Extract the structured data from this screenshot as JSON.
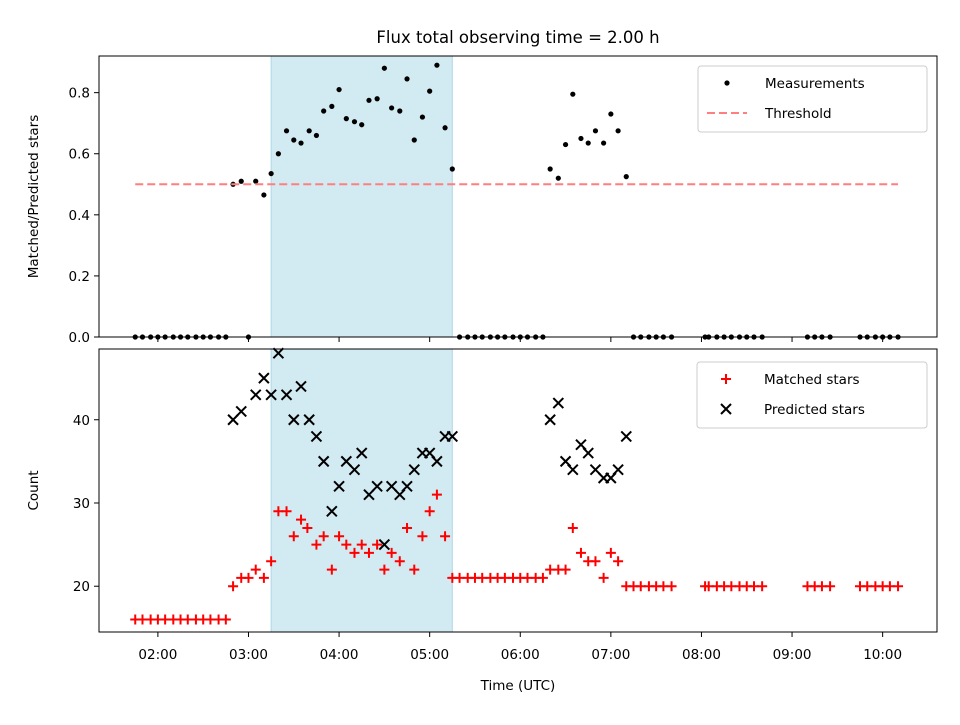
{
  "title": "Flux total observing time = 2.00 h",
  "x_axis": {
    "label": "Time (UTC)",
    "ticks": [
      "02:00",
      "03:00",
      "04:00",
      "05:00",
      "06:00",
      "07:00",
      "08:00",
      "09:00",
      "10:00"
    ],
    "tick_hours": [
      2,
      3,
      4,
      5,
      6,
      7,
      8,
      9,
      10
    ],
    "range_hours": [
      1.35,
      10.6
    ]
  },
  "highlight": {
    "start_hours": 3.25,
    "end_hours": 5.25,
    "color": "#add8e6"
  },
  "colors": {
    "measurements": "#000000",
    "threshold": "#ff7f7f",
    "matched": "#ff0000",
    "predicted": "#000000"
  },
  "chart_data": [
    {
      "type": "scatter",
      "ylabel": "Matched/Predicted stars",
      "ylim": [
        0,
        0.92
      ],
      "yticks": [
        "0.0",
        "0.2",
        "0.4",
        "0.6",
        "0.8"
      ],
      "legend": "top-right",
      "grid": false,
      "series": [
        {
          "name": "Measurements",
          "marker": "dot",
          "points": [
            [
              1.75,
              0
            ],
            [
              1.83,
              0
            ],
            [
              1.92,
              0
            ],
            [
              2.0,
              0
            ],
            [
              2.08,
              0
            ],
            [
              2.17,
              0
            ],
            [
              2.25,
              0
            ],
            [
              2.33,
              0
            ],
            [
              2.42,
              0
            ],
            [
              2.5,
              0
            ],
            [
              2.58,
              0
            ],
            [
              2.67,
              0
            ],
            [
              2.75,
              0
            ],
            [
              2.83,
              0.5
            ],
            [
              2.92,
              0.51
            ],
            [
              3.0,
              0
            ],
            [
              3.08,
              0.51
            ],
            [
              3.17,
              0.465
            ],
            [
              3.25,
              0.535
            ],
            [
              3.33,
              0.6
            ],
            [
              3.42,
              0.675
            ],
            [
              3.5,
              0.645
            ],
            [
              3.58,
              0.635
            ],
            [
              3.67,
              0.675
            ],
            [
              3.75,
              0.66
            ],
            [
              3.83,
              0.74
            ],
            [
              3.92,
              0.755
            ],
            [
              4.0,
              0.81
            ],
            [
              4.08,
              0.715
            ],
            [
              4.17,
              0.705
            ],
            [
              4.25,
              0.695
            ],
            [
              4.33,
              0.775
            ],
            [
              4.42,
              0.78
            ],
            [
              4.5,
              0.88
            ],
            [
              4.58,
              0.75
            ],
            [
              4.67,
              0.74
            ],
            [
              4.75,
              0.845
            ],
            [
              4.83,
              0.645
            ],
            [
              4.92,
              0.72
            ],
            [
              5.0,
              0.805
            ],
            [
              5.08,
              0.89
            ],
            [
              5.17,
              0.685
            ],
            [
              5.25,
              0.55
            ],
            [
              5.33,
              0
            ],
            [
              5.42,
              0
            ],
            [
              5.5,
              0
            ],
            [
              5.58,
              0
            ],
            [
              5.67,
              0
            ],
            [
              5.75,
              0
            ],
            [
              5.83,
              0
            ],
            [
              5.92,
              0
            ],
            [
              6.0,
              0
            ],
            [
              6.08,
              0
            ],
            [
              6.17,
              0
            ],
            [
              6.25,
              0
            ],
            [
              6.33,
              0.55
            ],
            [
              6.42,
              0.52
            ],
            [
              6.5,
              0.63
            ],
            [
              6.58,
              0.795
            ],
            [
              6.67,
              0.65
            ],
            [
              6.75,
              0.635
            ],
            [
              6.83,
              0.675
            ],
            [
              6.92,
              0.635
            ],
            [
              7.0,
              0.73
            ],
            [
              7.08,
              0.675
            ],
            [
              7.17,
              0.525
            ],
            [
              7.25,
              0
            ],
            [
              7.33,
              0
            ],
            [
              7.42,
              0
            ],
            [
              7.5,
              0
            ],
            [
              7.58,
              0
            ],
            [
              7.67,
              0
            ],
            [
              8.04,
              0
            ],
            [
              8.08,
              0
            ],
            [
              8.17,
              0
            ],
            [
              8.25,
              0
            ],
            [
              8.33,
              0
            ],
            [
              8.42,
              0
            ],
            [
              8.5,
              0
            ],
            [
              8.58,
              0
            ],
            [
              8.67,
              0
            ],
            [
              9.17,
              0
            ],
            [
              9.25,
              0
            ],
            [
              9.33,
              0
            ],
            [
              9.42,
              0
            ],
            [
              9.75,
              0
            ],
            [
              9.83,
              0
            ],
            [
              9.92,
              0
            ],
            [
              10.0,
              0
            ],
            [
              10.08,
              0
            ],
            [
              10.17,
              0
            ]
          ]
        },
        {
          "name": "Threshold",
          "style": "dashed",
          "points": [
            [
              1.75,
              0.5
            ],
            [
              10.17,
              0.5
            ]
          ]
        }
      ]
    },
    {
      "type": "scatter",
      "ylabel": "Count",
      "ylim": [
        14.5,
        48.5
      ],
      "yticks": [
        "20",
        "30",
        "40"
      ],
      "legend": "top-right",
      "grid": false,
      "series": [
        {
          "name": "Matched stars",
          "marker": "plus",
          "points": [
            [
              1.75,
              16
            ],
            [
              1.83,
              16
            ],
            [
              1.92,
              16
            ],
            [
              2.0,
              16
            ],
            [
              2.08,
              16
            ],
            [
              2.17,
              16
            ],
            [
              2.25,
              16
            ],
            [
              2.33,
              16
            ],
            [
              2.42,
              16
            ],
            [
              2.5,
              16
            ],
            [
              2.58,
              16
            ],
            [
              2.67,
              16
            ],
            [
              2.75,
              16
            ],
            [
              2.83,
              20
            ],
            [
              2.92,
              21
            ],
            [
              3.0,
              21
            ],
            [
              3.08,
              22
            ],
            [
              3.17,
              21
            ],
            [
              3.25,
              23
            ],
            [
              3.33,
              29
            ],
            [
              3.42,
              29
            ],
            [
              3.5,
              26
            ],
            [
              3.58,
              28
            ],
            [
              3.65,
              27
            ],
            [
              3.75,
              25
            ],
            [
              3.83,
              26
            ],
            [
              3.92,
              22
            ],
            [
              4.0,
              26
            ],
            [
              4.08,
              25
            ],
            [
              4.17,
              24
            ],
            [
              4.25,
              25
            ],
            [
              4.33,
              24
            ],
            [
              4.42,
              25
            ],
            [
              4.5,
              22
            ],
            [
              4.58,
              24
            ],
            [
              4.67,
              23
            ],
            [
              4.75,
              27
            ],
            [
              4.83,
              22
            ],
            [
              4.92,
              26
            ],
            [
              5.0,
              29
            ],
            [
              5.08,
              31
            ],
            [
              5.17,
              26
            ],
            [
              5.25,
              21
            ],
            [
              5.33,
              21
            ],
            [
              5.42,
              21
            ],
            [
              5.5,
              21
            ],
            [
              5.58,
              21
            ],
            [
              5.67,
              21
            ],
            [
              5.75,
              21
            ],
            [
              5.83,
              21
            ],
            [
              5.92,
              21
            ],
            [
              6.0,
              21
            ],
            [
              6.08,
              21
            ],
            [
              6.17,
              21
            ],
            [
              6.25,
              21
            ],
            [
              6.33,
              22
            ],
            [
              6.42,
              22
            ],
            [
              6.5,
              22
            ],
            [
              6.58,
              27
            ],
            [
              6.67,
              24
            ],
            [
              6.75,
              23
            ],
            [
              6.83,
              23
            ],
            [
              6.92,
              21
            ],
            [
              7.0,
              24
            ],
            [
              7.08,
              23
            ],
            [
              7.17,
              20
            ],
            [
              7.25,
              20
            ],
            [
              7.33,
              20
            ],
            [
              7.42,
              20
            ],
            [
              7.5,
              20
            ],
            [
              7.58,
              20
            ],
            [
              7.67,
              20
            ],
            [
              8.04,
              20
            ],
            [
              8.08,
              20
            ],
            [
              8.17,
              20
            ],
            [
              8.25,
              20
            ],
            [
              8.33,
              20
            ],
            [
              8.42,
              20
            ],
            [
              8.5,
              20
            ],
            [
              8.58,
              20
            ],
            [
              8.67,
              20
            ],
            [
              9.17,
              20
            ],
            [
              9.25,
              20
            ],
            [
              9.33,
              20
            ],
            [
              9.42,
              20
            ],
            [
              9.75,
              20
            ],
            [
              9.83,
              20
            ],
            [
              9.92,
              20
            ],
            [
              10.0,
              20
            ],
            [
              10.08,
              20
            ],
            [
              10.17,
              20
            ]
          ]
        },
        {
          "name": "Predicted stars",
          "marker": "x",
          "points": [
            [
              2.83,
              40
            ],
            [
              2.92,
              41
            ],
            [
              3.08,
              43
            ],
            [
              3.17,
              45
            ],
            [
              3.25,
              43
            ],
            [
              3.33,
              48
            ],
            [
              3.42,
              43
            ],
            [
              3.5,
              40
            ],
            [
              3.58,
              44
            ],
            [
              3.67,
              40
            ],
            [
              3.75,
              38
            ],
            [
              3.83,
              35
            ],
            [
              3.92,
              29
            ],
            [
              4.0,
              32
            ],
            [
              4.08,
              35
            ],
            [
              4.17,
              34
            ],
            [
              4.25,
              36
            ],
            [
              4.33,
              31
            ],
            [
              4.42,
              32
            ],
            [
              4.5,
              25
            ],
            [
              4.58,
              32
            ],
            [
              4.67,
              31
            ],
            [
              4.75,
              32
            ],
            [
              4.83,
              34
            ],
            [
              4.92,
              36
            ],
            [
              5.0,
              36
            ],
            [
              5.08,
              35
            ],
            [
              5.17,
              38
            ],
            [
              5.25,
              38
            ],
            [
              6.33,
              40
            ],
            [
              6.42,
              42
            ],
            [
              6.5,
              35
            ],
            [
              6.58,
              34
            ],
            [
              6.67,
              37
            ],
            [
              6.75,
              36
            ],
            [
              6.83,
              34
            ],
            [
              6.92,
              33
            ],
            [
              7.0,
              33
            ],
            [
              7.08,
              34
            ],
            [
              7.17,
              38
            ]
          ]
        }
      ]
    }
  ]
}
